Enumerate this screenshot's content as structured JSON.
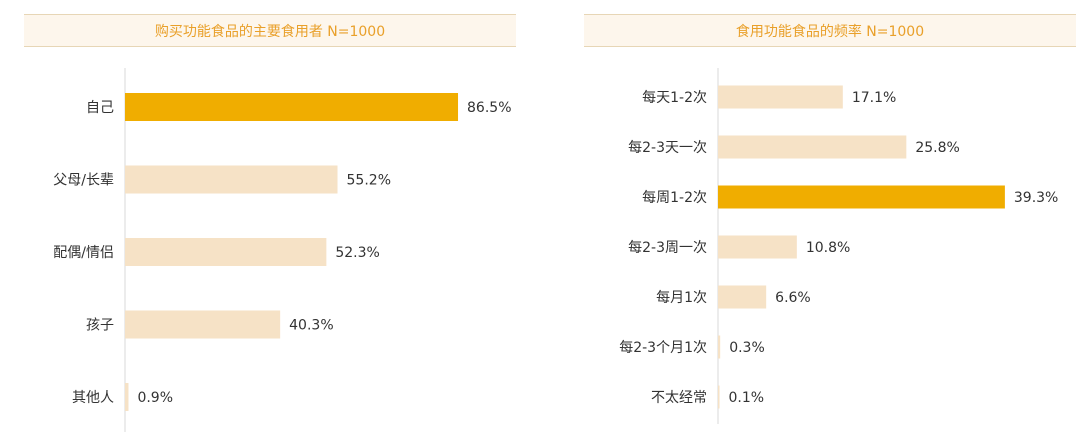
{
  "colors": {
    "highlight": "#f0ad00",
    "normal": "#f6e2c6",
    "axis": "#d9d9d9",
    "label": "#333333",
    "title": "#e9a02a"
  },
  "chart_data": [
    {
      "type": "bar",
      "orientation": "horizontal",
      "title": "购买功能食品的主要食用者 N=1000",
      "categories": [
        "自己",
        "父母/长辈",
        "配偶/情侣",
        "孩子",
        "其他人"
      ],
      "values": [
        86.5,
        55.2,
        52.3,
        40.3,
        0.9
      ],
      "value_labels": [
        "86.5%",
        "55.2%",
        "52.3%",
        "40.3%",
        "0.9%"
      ],
      "highlight_index": 0,
      "xlim": [
        0,
        100
      ],
      "grid": false
    },
    {
      "type": "bar",
      "orientation": "horizontal",
      "title": "食用功能食品的频率 N=1000",
      "categories": [
        "每天1-2次",
        "每2-3天一次",
        "每周1-2次",
        "每2-3周一次",
        "每月1次",
        "每2-3个月1次",
        "不太经常"
      ],
      "values": [
        17.1,
        25.8,
        39.3,
        10.8,
        6.6,
        0.3,
        0.1
      ],
      "value_labels": [
        "17.1%",
        "25.8%",
        "39.3%",
        "10.8%",
        "6.6%",
        "0.3%",
        "0.1%"
      ],
      "highlight_index": 2,
      "xlim": [
        0,
        45
      ],
      "grid": false
    }
  ]
}
